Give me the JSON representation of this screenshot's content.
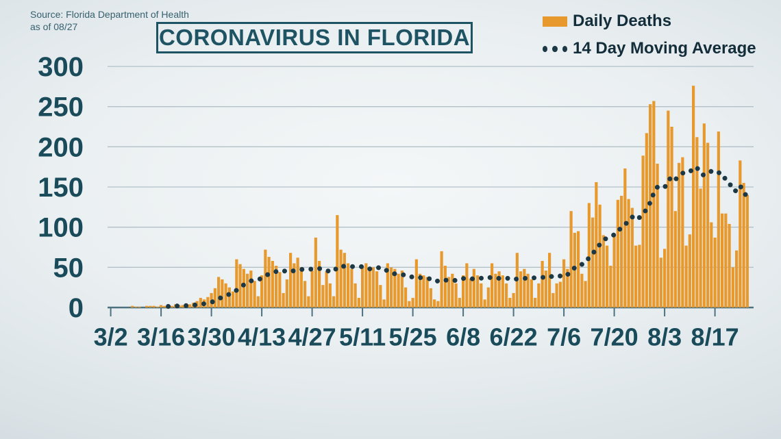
{
  "source": {
    "line1": "Source: Florida Department of Health",
    "line2": "as of 08/27"
  },
  "title": "CORONAVIRUS IN FLORIDA",
  "legend": [
    {
      "label": "Daily Deaths",
      "swatch": "bar-swatch"
    },
    {
      "label": "14 Day Moving Average",
      "swatch": "dots-icon"
    }
  ],
  "colors": {
    "bar": "#e8992d",
    "dots": "#1d3845",
    "title": "#1e5363",
    "axis_text": "#1a4b5a",
    "grid": "#b2c0c9",
    "axis_line": "#4c7280",
    "source_text": "#35606e",
    "legend_text": "#132e3a"
  },
  "chart_data": {
    "type": "bar",
    "title": "CORONAVIRUS IN FLORIDA",
    "start_date": "3/2",
    "end_date": "8/26",
    "as_of": "08/27",
    "xlabel": "",
    "ylabel": "Daily Deaths",
    "ylim": [
      0,
      300
    ],
    "y_ticks": [
      0,
      50,
      100,
      150,
      200,
      250,
      300
    ],
    "x_tick_labels": [
      "3/2",
      "3/16",
      "3/30",
      "4/13",
      "4/27",
      "5/11",
      "5/25",
      "6/8",
      "6/22",
      "7/6",
      "7/20",
      "8/3",
      "8/17"
    ],
    "x_tick_interval_days": 14,
    "grid": "horizontal",
    "legend_position": "top-right",
    "series": [
      {
        "name": "Daily Deaths",
        "type": "bar",
        "values": [
          0,
          0,
          0,
          0,
          0,
          0,
          2,
          1,
          1,
          0,
          2,
          2,
          2,
          1,
          3,
          2,
          3,
          2,
          4,
          3,
          3,
          5,
          4,
          6,
          8,
          12,
          10,
          13,
          18,
          24,
          38,
          35,
          30,
          25,
          20,
          60,
          54,
          48,
          42,
          46,
          33,
          14,
          40,
          72,
          63,
          58,
          52,
          44,
          18,
          35,
          68,
          55,
          62,
          50,
          33,
          14,
          46,
          87,
          58,
          28,
          45,
          30,
          14,
          115,
          72,
          68,
          55,
          48,
          30,
          12,
          52,
          55,
          48,
          50,
          45,
          28,
          10,
          55,
          50,
          48,
          42,
          46,
          25,
          8,
          12,
          60,
          42,
          40,
          38,
          24,
          10,
          8,
          70,
          52,
          38,
          42,
          30,
          12,
          40,
          55,
          36,
          48,
          40,
          30,
          10,
          25,
          55,
          42,
          45,
          40,
          30,
          12,
          18,
          68,
          45,
          48,
          42,
          35,
          12,
          30,
          58,
          46,
          68,
          18,
          30,
          32,
          60,
          48,
          120,
          93,
          95,
          42,
          33,
          130,
          112,
          156,
          128,
          90,
          77,
          52,
          92,
          134,
          139,
          173,
          135,
          124,
          77,
          78,
          189,
          217,
          253,
          257,
          179,
          62,
          73,
          245,
          225,
          120,
          180,
          187,
          77,
          91,
          276,
          212,
          148,
          229,
          205,
          106,
          87,
          219,
          117,
          117,
          104,
          50,
          71,
          183,
          155,
          140
        ]
      },
      {
        "name": "14 Day Moving Average",
        "type": "dotted-line",
        "derivation": "trailing 14-day mean of Daily Deaths values"
      }
    ]
  }
}
